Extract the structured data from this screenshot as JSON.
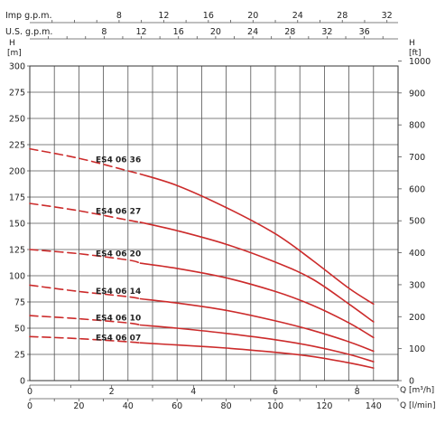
{
  "chart_data": {
    "type": "line",
    "title": "",
    "colors": {
      "curve": "#cc2b2b",
      "grid": "#555555"
    },
    "left_axis": {
      "label_top": "H",
      "label_unit": "[m]",
      "range": [
        0,
        300
      ],
      "ticks": [
        0,
        25,
        50,
        75,
        100,
        125,
        150,
        175,
        200,
        225,
        250,
        275,
        300
      ]
    },
    "right_axis": {
      "label_top": "H",
      "label_unit": "[ft]",
      "range": [
        0,
        984.3
      ],
      "ticks": [
        0,
        100,
        200,
        300,
        400,
        500,
        600,
        700,
        800,
        900,
        1000
      ]
    },
    "bottom_axis_m3h": {
      "label": "Q [m³/h]",
      "range": [
        0,
        9
      ],
      "ticks": [
        0,
        2,
        4,
        6,
        8
      ]
    },
    "bottom_axis_lmin": {
      "label": "Q [l/min]",
      "range": [
        0,
        150
      ],
      "ticks": [
        0,
        20,
        40,
        60,
        80,
        100,
        120,
        140
      ]
    },
    "top_axis_imp": {
      "label": "Imp g.p.m.",
      "ticks": [
        8,
        12,
        16,
        20,
        24,
        28,
        32
      ]
    },
    "top_axis_us": {
      "label": "U.S. g.p.m.",
      "ticks": [
        8,
        12,
        16,
        20,
        24,
        28,
        32,
        36
      ]
    },
    "series": [
      {
        "name": "ES4 06   36",
        "dashed_x": [
          0,
          45
        ],
        "solid_x": [
          45,
          140
        ],
        "points": [
          [
            0,
            221
          ],
          [
            20,
            212
          ],
          [
            40,
            200
          ],
          [
            45,
            197
          ],
          [
            60,
            186
          ],
          [
            80,
            165
          ],
          [
            100,
            140
          ],
          [
            115,
            115
          ],
          [
            130,
            88
          ],
          [
            140,
            73
          ]
        ]
      },
      {
        "name": "ES4 06   27",
        "dashed_x": [
          0,
          45
        ],
        "solid_x": [
          45,
          140
        ],
        "points": [
          [
            0,
            169
          ],
          [
            20,
            162
          ],
          [
            40,
            153
          ],
          [
            45,
            151
          ],
          [
            60,
            143
          ],
          [
            80,
            130
          ],
          [
            100,
            113
          ],
          [
            115,
            97
          ],
          [
            130,
            73
          ],
          [
            140,
            56
          ]
        ]
      },
      {
        "name": "ES4 06   20",
        "dashed_x": [
          0,
          45
        ],
        "solid_x": [
          45,
          140
        ],
        "points": [
          [
            0,
            125
          ],
          [
            20,
            121
          ],
          [
            40,
            115
          ],
          [
            45,
            112
          ],
          [
            60,
            107
          ],
          [
            80,
            98
          ],
          [
            100,
            85
          ],
          [
            115,
            72
          ],
          [
            130,
            55
          ],
          [
            140,
            41
          ]
        ]
      },
      {
        "name": "ES4 06   14",
        "dashed_x": [
          0,
          45
        ],
        "solid_x": [
          45,
          140
        ],
        "points": [
          [
            0,
            91
          ],
          [
            20,
            85
          ],
          [
            40,
            80
          ],
          [
            45,
            78
          ],
          [
            60,
            74
          ],
          [
            80,
            67
          ],
          [
            100,
            57
          ],
          [
            115,
            48
          ],
          [
            130,
            37
          ],
          [
            140,
            28
          ]
        ]
      },
      {
        "name": "ES4 06   10",
        "dashed_x": [
          0,
          45
        ],
        "solid_x": [
          45,
          140
        ],
        "points": [
          [
            0,
            62
          ],
          [
            20,
            59
          ],
          [
            40,
            55
          ],
          [
            45,
            53
          ],
          [
            60,
            50
          ],
          [
            80,
            45
          ],
          [
            100,
            39
          ],
          [
            115,
            33
          ],
          [
            130,
            25
          ],
          [
            140,
            18
          ]
        ]
      },
      {
        "name": "ES4 06   07",
        "dashed_x": [
          0,
          45
        ],
        "solid_x": [
          45,
          140
        ],
        "points": [
          [
            0,
            42
          ],
          [
            20,
            40
          ],
          [
            40,
            37
          ],
          [
            45,
            36
          ],
          [
            60,
            34
          ],
          [
            80,
            31
          ],
          [
            100,
            27
          ],
          [
            115,
            23
          ],
          [
            130,
            17
          ],
          [
            140,
            12
          ]
        ]
      }
    ]
  }
}
